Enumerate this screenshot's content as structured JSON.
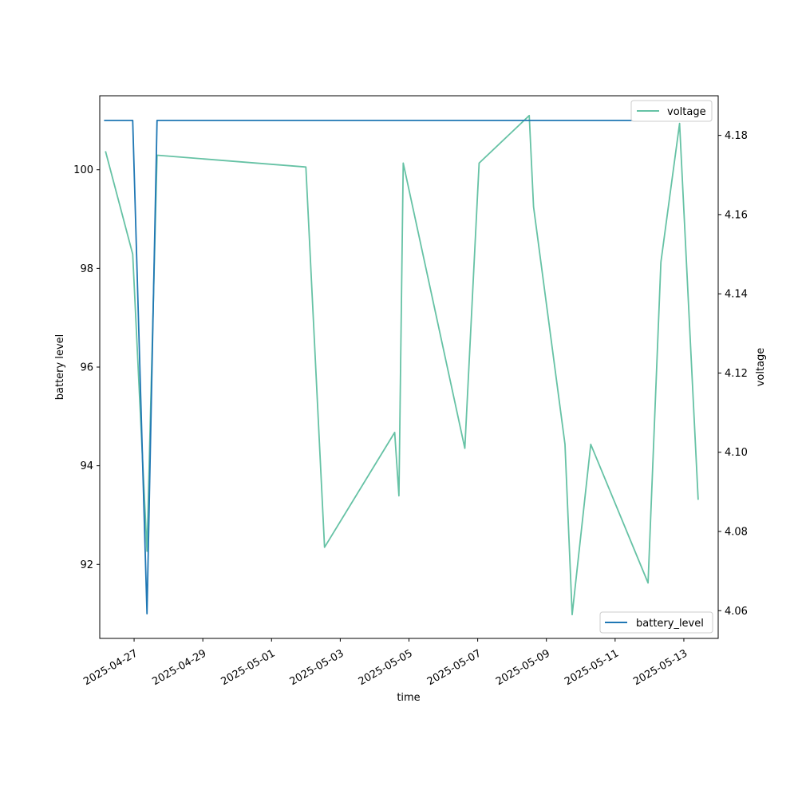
{
  "chart_data": {
    "type": "line",
    "xlabel": "time",
    "ylabel_left": "battery level",
    "ylabel_right": "voltage",
    "x_range": [
      "2025-04-26 00:00",
      "2025-05-14 00:00"
    ],
    "x_ticks": [
      "2025-04-27",
      "2025-04-29",
      "2025-05-01",
      "2025-05-03",
      "2025-05-05",
      "2025-05-07",
      "2025-05-09",
      "2025-05-11",
      "2025-05-13"
    ],
    "y_left": {
      "range": [
        90.5,
        101.5
      ],
      "ticks": [
        92,
        94,
        96,
        98,
        100
      ]
    },
    "y_right": {
      "range": [
        4.053,
        4.19
      ],
      "ticks": [
        4.06,
        4.08,
        4.1,
        4.12,
        4.14,
        4.16,
        4.18
      ]
    },
    "grid": false,
    "series": [
      {
        "name": "battery_level",
        "axis": "left",
        "color": "#1f77b4",
        "legend_position": "lower right",
        "points": [
          [
            "2025-04-26 03:00",
            101
          ],
          [
            "2025-04-26 23:00",
            101
          ],
          [
            "2025-04-27 09:00",
            91
          ],
          [
            "2025-04-27 16:00",
            101
          ],
          [
            "2025-05-13 09:00",
            101
          ]
        ]
      },
      {
        "name": "voltage",
        "axis": "right",
        "color": "#66c2a5",
        "legend_position": "upper right",
        "points": [
          [
            "2025-04-26 04:00",
            4.176
          ],
          [
            "2025-04-26 23:00",
            4.15
          ],
          [
            "2025-04-27 09:00",
            4.075
          ],
          [
            "2025-04-27 16:00",
            4.175
          ],
          [
            "2025-05-02 00:00",
            4.172
          ],
          [
            "2025-05-02 13:00",
            4.076
          ],
          [
            "2025-05-04 14:00",
            4.105
          ],
          [
            "2025-05-04 17:00",
            4.089
          ],
          [
            "2025-05-04 20:00",
            4.173
          ],
          [
            "2025-05-06 15:00",
            4.101
          ],
          [
            "2025-05-07 01:00",
            4.173
          ],
          [
            "2025-05-08 12:00",
            4.185
          ],
          [
            "2025-05-08 15:00",
            4.162
          ],
          [
            "2025-05-09 13:00",
            4.102
          ],
          [
            "2025-05-09 18:00",
            4.059
          ],
          [
            "2025-05-10 07:00",
            4.102
          ],
          [
            "2025-05-11 23:00",
            4.067
          ],
          [
            "2025-05-12 08:00",
            4.148
          ],
          [
            "2025-05-12 21:00",
            4.183
          ],
          [
            "2025-05-13 10:00",
            4.088
          ]
        ]
      }
    ]
  }
}
